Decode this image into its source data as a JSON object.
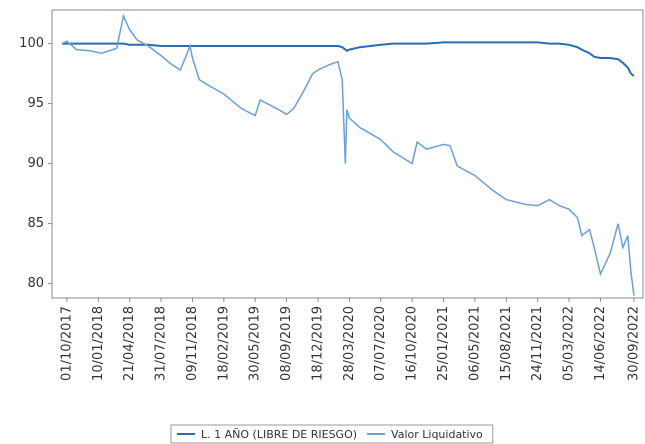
{
  "chart_data": {
    "type": "line",
    "x": [
      "15/09/2017",
      "01/10/2017",
      "01/11/2017",
      "15/12/2017",
      "20/01/2018",
      "10/03/2018",
      "01/04/2018",
      "20/04/2018",
      "15/05/2018",
      "20/06/2018",
      "31/07/2018",
      "01/09/2018",
      "01/10/2018",
      "20/10/2018",
      "01/11/2018",
      "09/11/2018",
      "01/12/2018",
      "01/01/2019",
      "18/02/2019",
      "15/04/2019",
      "30/05/2019",
      "15/06/2019",
      "15/07/2019",
      "20/08/2019",
      "08/09/2019",
      "01/10/2019",
      "01/11/2019",
      "01/12/2019",
      "18/12/2019",
      "20/01/2020",
      "20/02/2020",
      "05/03/2020",
      "15/03/2020",
      "20/03/2020",
      "28/03/2020",
      "01/05/2020",
      "07/07/2020",
      "15/08/2020",
      "16/10/2020",
      "01/11/2020",
      "01/12/2020",
      "25/01/2021",
      "15/02/2021",
      "10/03/2021",
      "06/05/2021",
      "01/07/2021",
      "15/08/2021",
      "15/10/2021",
      "24/11/2021",
      "01/01/2022",
      "01/02/2022",
      "05/03/2022",
      "01/04/2022",
      "15/04/2022",
      "10/05/2022",
      "25/05/2022",
      "14/06/2022",
      "15/07/2022",
      "10/08/2022",
      "25/08/2022",
      "10/09/2022",
      "20/09/2022",
      "30/09/2022"
    ],
    "series": [
      {
        "name": "L. 1 AÑO (LIBRE DE RIESGO)",
        "color": "#2b6cb0",
        "values": [
          100.0,
          100.0,
          100.0,
          100.0,
          100.0,
          100.0,
          100.0,
          99.9,
          99.9,
          99.9,
          99.8,
          99.8,
          99.8,
          99.8,
          99.8,
          99.8,
          99.8,
          99.8,
          99.8,
          99.8,
          99.8,
          99.8,
          99.8,
          99.8,
          99.8,
          99.8,
          99.8,
          99.8,
          99.8,
          99.8,
          99.8,
          99.7,
          99.5,
          99.4,
          99.5,
          99.7,
          99.9,
          100.0,
          100.0,
          100.0,
          100.0,
          100.1,
          100.1,
          100.1,
          100.1,
          100.1,
          100.1,
          100.1,
          100.1,
          100.0,
          100.0,
          99.9,
          99.7,
          99.5,
          99.2,
          98.9,
          98.8,
          98.8,
          98.7,
          98.4,
          98.0,
          97.5,
          97.3
        ]
      },
      {
        "name": "Valor Liquidativo",
        "color": "#6b9fd6",
        "values": [
          100.0,
          100.2,
          99.5,
          99.4,
          99.2,
          99.6,
          102.3,
          101.2,
          100.3,
          99.8,
          99.0,
          98.3,
          97.8,
          99.0,
          99.8,
          98.8,
          97.0,
          96.5,
          95.8,
          94.6,
          94.0,
          95.3,
          94.9,
          94.4,
          94.1,
          94.6,
          96.0,
          97.5,
          97.8,
          98.2,
          98.5,
          97.0,
          90.0,
          94.5,
          93.8,
          93.0,
          92.0,
          91.0,
          90.0,
          91.8,
          91.2,
          91.6,
          91.5,
          89.8,
          89.0,
          87.8,
          87.0,
          86.6,
          86.5,
          87.0,
          86.5,
          86.2,
          85.5,
          84.0,
          84.5,
          83.0,
          80.8,
          82.5,
          85.0,
          83.0,
          84.0,
          81.0,
          79.0
        ]
      }
    ],
    "xlim": [
      "14/08/2017",
      "29/10/2022"
    ],
    "xticks": [
      "01/10/2017",
      "10/01/2018",
      "21/04/2018",
      "31/07/2018",
      "09/11/2018",
      "18/02/2019",
      "30/05/2019",
      "08/09/2019",
      "18/12/2019",
      "28/03/2020",
      "07/07/2020",
      "16/10/2020",
      "25/01/2021",
      "06/05/2021",
      "15/08/2021",
      "24/11/2021",
      "05/03/2022",
      "14/06/2022",
      "30/09/2022"
    ],
    "ylim": [
      78.8,
      102.8
    ],
    "yticks": [
      80,
      85,
      90,
      95,
      100
    ],
    "grid": false,
    "legend": "bottom"
  }
}
